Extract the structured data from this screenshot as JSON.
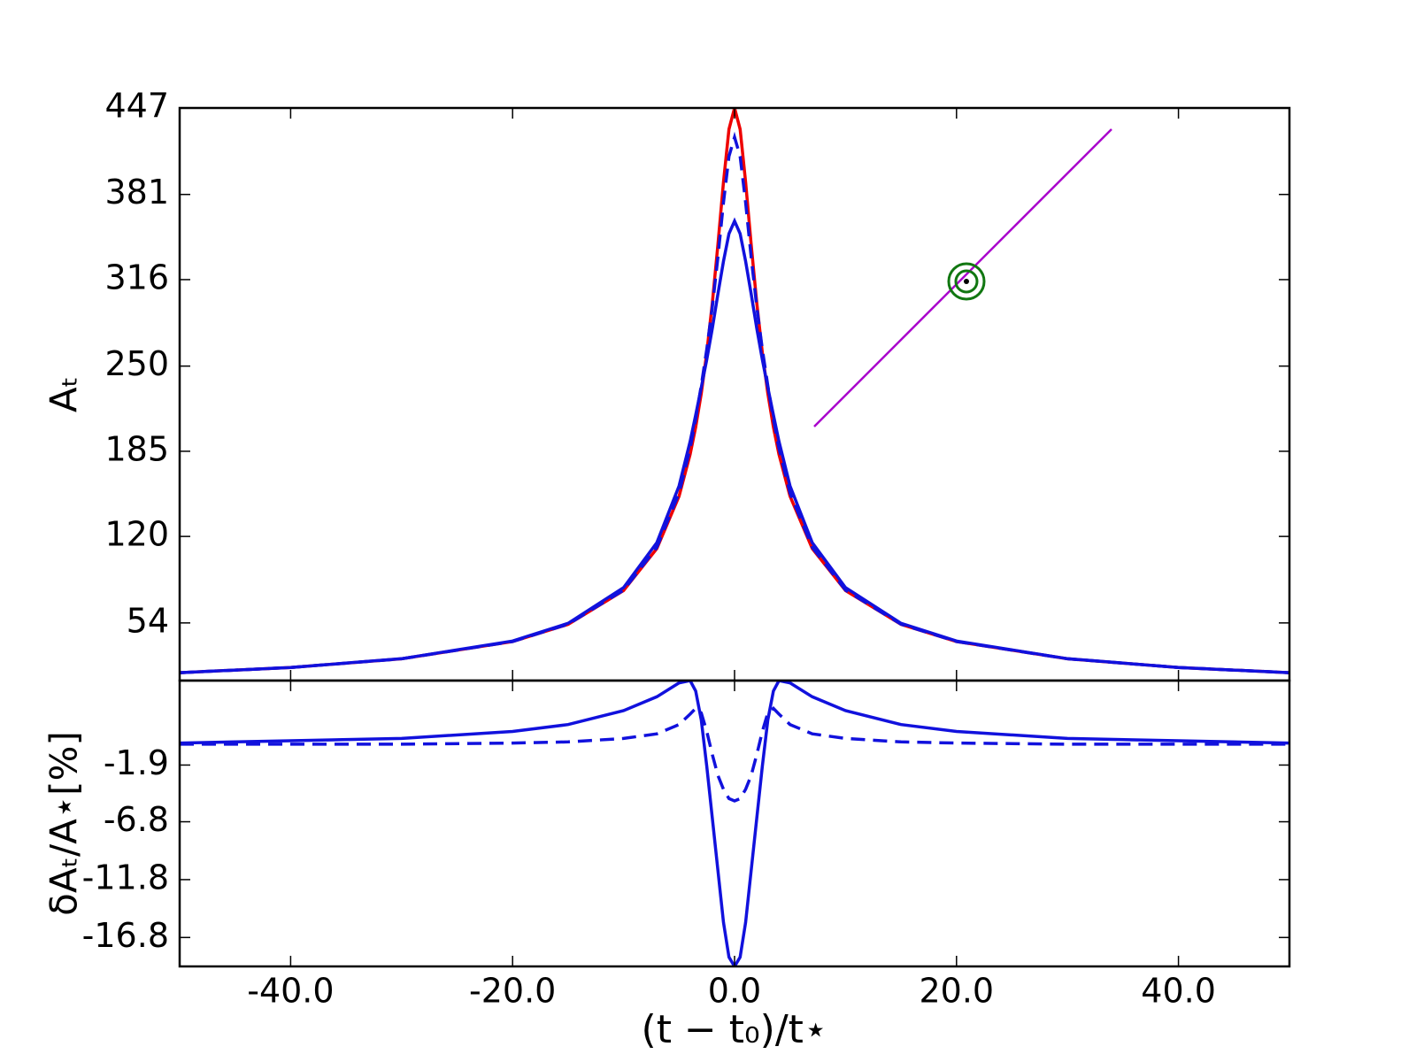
{
  "chart_data": [
    {
      "type": "line",
      "ylabel": "Aₜ",
      "x": [
        -50,
        -40,
        -30,
        -20,
        -15,
        -10,
        -7,
        -5,
        -4,
        -3.5,
        -3,
        -2.5,
        -2,
        -1.5,
        -1,
        -0.5,
        0,
        0.5,
        1,
        1.5,
        2,
        2.5,
        3,
        3.5,
        4,
        5,
        7,
        10,
        15,
        20,
        30,
        40,
        50
      ],
      "series": [
        {
          "color": "#ee0000",
          "dashed": false,
          "values": [
            16.0,
            20.0,
            26.6,
            39.8,
            52.9,
            78.7,
            110.8,
            150.7,
            182.6,
            203.5,
            229.1,
            260.2,
            298.2,
            342.7,
            390.5,
            430.8,
            447,
            430.8,
            390.5,
            342.7,
            298.2,
            260.2,
            229.1,
            203.5,
            182.6,
            150.7,
            110.8,
            78.7,
            52.9,
            39.8,
            26.6,
            20.0,
            16.0
          ]
        },
        {
          "color": "#1111dd",
          "dashed": true,
          "values": [
            16.0,
            20.0,
            26.6,
            39.8,
            53.0,
            79.0,
            111.7,
            153.1,
            187.2,
            209.6,
            235.1,
            262.8,
            295.2,
            333.1,
            374.9,
            410.1,
            424.7,
            410.1,
            374.9,
            333.1,
            295.2,
            262.8,
            235.1,
            209.6,
            187.2,
            153.1,
            111.7,
            79.0,
            53.0,
            39.8,
            26.6,
            20.0,
            16.0
          ]
        },
        {
          "color": "#1111dd",
          "dashed": false,
          "values": [
            16.0,
            20.0,
            26.7,
            40.2,
            53.7,
            80.9,
            115.2,
            158.5,
            192.5,
            212.7,
            233.7,
            255.0,
            278.8,
            305.0,
            330.0,
            351.1,
            360.7,
            351.1,
            330.0,
            305.0,
            278.8,
            255.0,
            233.7,
            212.7,
            192.5,
            158.5,
            115.2,
            80.9,
            53.7,
            40.2,
            26.7,
            20.0,
            16.0
          ]
        }
      ],
      "xlim": [
        -50,
        50
      ],
      "ylim": [
        10,
        447
      ],
      "yticks": [
        54,
        120,
        185,
        250,
        316,
        381,
        447
      ]
    },
    {
      "type": "line",
      "ylabel": "δAₜ/A⋆[%]",
      "xlabel": "(t − t₀)/t⋆",
      "x": [
        -50,
        -40,
        -30,
        -20,
        -15,
        -10,
        -7,
        -5,
        -4,
        -3.5,
        -3,
        -2.5,
        -2,
        -1.5,
        -1,
        -0.5,
        0,
        0.5,
        1,
        1.5,
        2,
        2.5,
        3,
        3.5,
        4,
        5,
        7,
        10,
        15,
        20,
        30,
        40,
        50
      ],
      "series": [
        {
          "color": "#1111dd",
          "dashed": true,
          "values": [
            -0.1,
            -0.1,
            -0.1,
            0,
            0.1,
            0.4,
            0.8,
            1.6,
            2.5,
            3.0,
            2.6,
            1.0,
            -1.0,
            -2.8,
            -4.0,
            -4.8,
            -5.0,
            -4.8,
            -4.0,
            -2.8,
            -1.0,
            1.0,
            2.6,
            3.0,
            2.5,
            1.6,
            0.8,
            0.4,
            0.1,
            0,
            -0.1,
            -0.1,
            -0.1
          ]
        },
        {
          "color": "#1111dd",
          "dashed": false,
          "values": [
            0,
            0.2,
            0.4,
            1.0,
            1.6,
            2.8,
            4.0,
            5.2,
            5.4,
            4.5,
            2.0,
            -2.0,
            -6.5,
            -11,
            -15.5,
            -18.5,
            -19.3,
            -18.5,
            -15.5,
            -11,
            -6.5,
            -2.0,
            2.0,
            4.5,
            5.4,
            5.2,
            4.0,
            2.8,
            1.6,
            1.0,
            0.4,
            0.2,
            0
          ]
        }
      ],
      "xlim": [
        -50,
        50
      ],
      "ylim": [
        -19.3,
        5.4
      ],
      "xticks": [
        {
          "value": -40,
          "label": "-40.0"
        },
        {
          "value": -20,
          "label": "-20.0"
        },
        {
          "value": 0,
          "label": "0.0"
        },
        {
          "value": 20,
          "label": "20.0"
        },
        {
          "value": 40,
          "label": "40.0"
        }
      ],
      "yticks": [
        {
          "value": -16.8,
          "label": "-16.8"
        },
        {
          "value": -11.8,
          "label": "-11.8"
        },
        {
          "value": -6.8,
          "label": "-6.8"
        },
        {
          "value": -1.9,
          "label": "-1.9"
        }
      ]
    }
  ]
}
